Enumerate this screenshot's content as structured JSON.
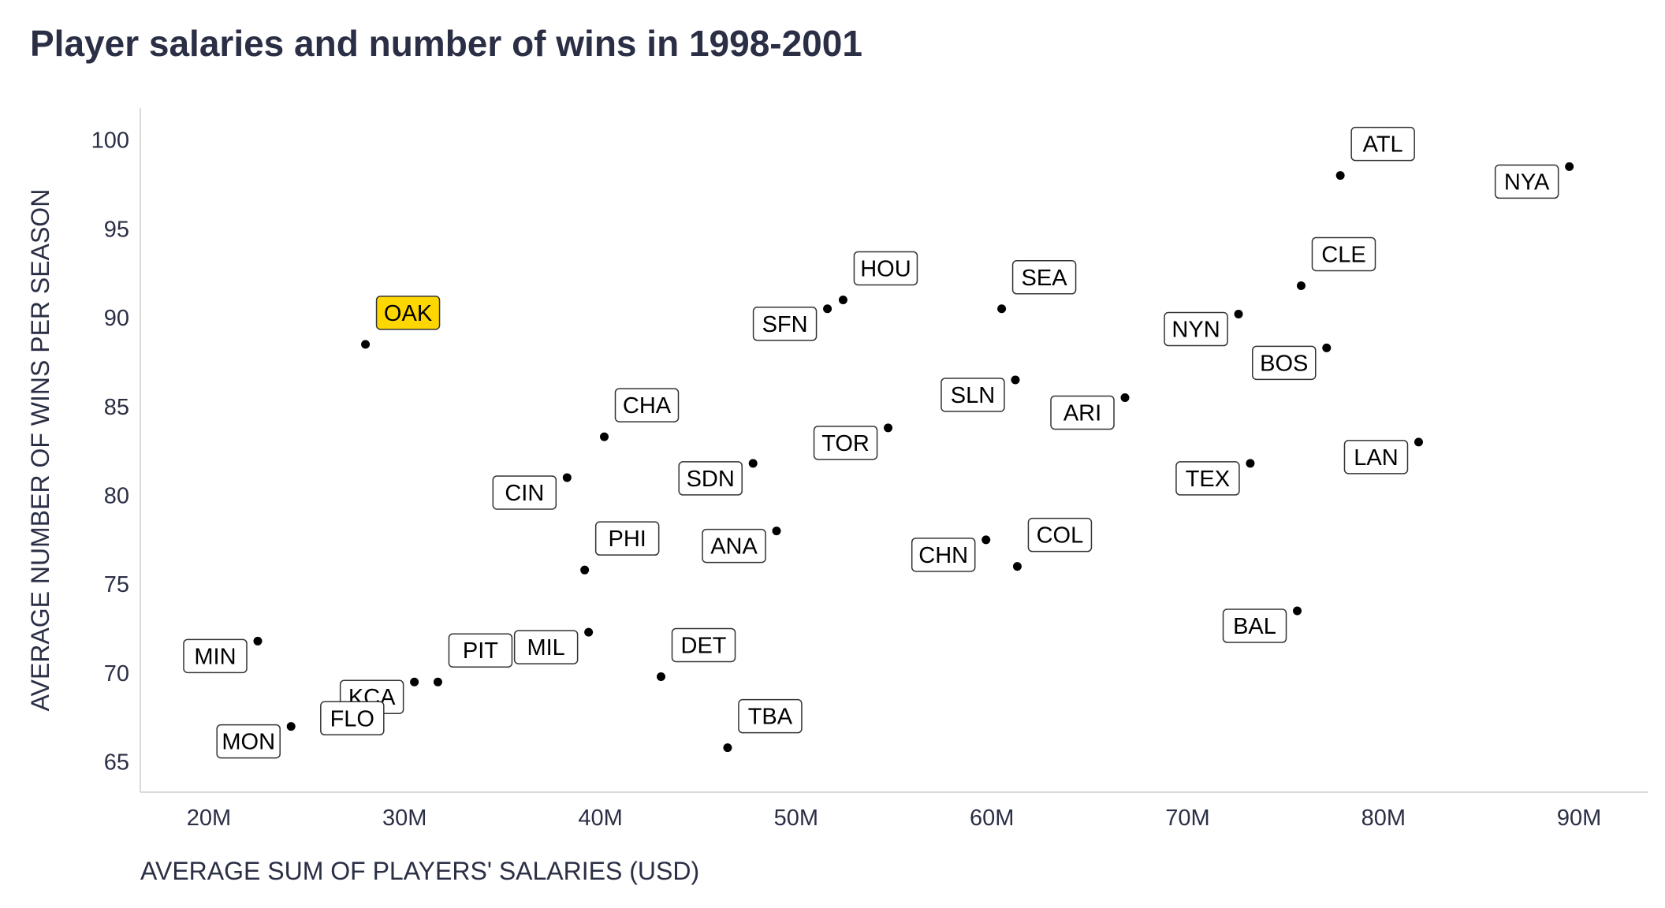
{
  "chart_data": {
    "type": "scatter",
    "title": "Player salaries and number of wins in 1998-2001",
    "xlabel": "AVERAGE SUM OF PLAYERS' SALARIES (USD)",
    "ylabel": "AVERAGE NUMBER OF WINS PER SEASON",
    "xlim": [
      16.5,
      93.5
    ],
    "ylim": [
      63.3,
      101.8
    ],
    "x_unit": "millions USD",
    "x_ticks": [
      {
        "value": 20,
        "label": "20M"
      },
      {
        "value": 30,
        "label": "30M"
      },
      {
        "value": 40,
        "label": "40M"
      },
      {
        "value": 50,
        "label": "50M"
      },
      {
        "value": 60,
        "label": "60M"
      },
      {
        "value": 70,
        "label": "70M"
      },
      {
        "value": 80,
        "label": "80M"
      },
      {
        "value": 90,
        "label": "90M"
      }
    ],
    "y_ticks": [
      {
        "value": 65,
        "label": "65"
      },
      {
        "value": 70,
        "label": "70"
      },
      {
        "value": 75,
        "label": "75"
      },
      {
        "value": 80,
        "label": "80"
      },
      {
        "value": 85,
        "label": "85"
      },
      {
        "value": 90,
        "label": "90"
      },
      {
        "value": 95,
        "label": "95"
      },
      {
        "value": 100,
        "label": "100"
      }
    ],
    "grid": false,
    "highlight_color": "#ffd700",
    "point_color": "#000000",
    "label_placement": {
      "right": "up-right",
      "left": "down-left"
    },
    "points": [
      {
        "team": "ATL",
        "x": 77.8,
        "y": 98.0,
        "side": "right"
      },
      {
        "team": "NYA",
        "x": 89.5,
        "y": 98.5,
        "side": "left"
      },
      {
        "team": "CLE",
        "x": 75.8,
        "y": 91.8,
        "side": "right"
      },
      {
        "team": "HOU",
        "x": 52.4,
        "y": 91.0,
        "side": "right"
      },
      {
        "team": "SFN",
        "x": 51.6,
        "y": 90.5,
        "side": "left"
      },
      {
        "team": "SEA",
        "x": 60.5,
        "y": 90.5,
        "side": "right"
      },
      {
        "team": "NYN",
        "x": 72.6,
        "y": 90.2,
        "side": "left"
      },
      {
        "team": "OAK",
        "x": 28.0,
        "y": 88.5,
        "side": "right",
        "highlight": true
      },
      {
        "team": "BOS",
        "x": 77.1,
        "y": 88.3,
        "side": "left"
      },
      {
        "team": "SLN",
        "x": 61.2,
        "y": 86.5,
        "side": "left"
      },
      {
        "team": "ARI",
        "x": 66.8,
        "y": 85.5,
        "side": "left"
      },
      {
        "team": "TOR",
        "x": 54.7,
        "y": 83.8,
        "side": "left"
      },
      {
        "team": "CHA",
        "x": 40.2,
        "y": 83.3,
        "side": "right"
      },
      {
        "team": "LAN",
        "x": 81.8,
        "y": 83.0,
        "side": "left"
      },
      {
        "team": "SDN",
        "x": 47.8,
        "y": 81.8,
        "side": "left"
      },
      {
        "team": "TEX",
        "x": 73.2,
        "y": 81.8,
        "side": "left"
      },
      {
        "team": "CIN",
        "x": 38.3,
        "y": 81.0,
        "side": "left"
      },
      {
        "team": "ANA",
        "x": 49.0,
        "y": 78.0,
        "side": "left"
      },
      {
        "team": "CHN",
        "x": 59.7,
        "y": 77.5,
        "side": "left"
      },
      {
        "team": "COL",
        "x": 61.3,
        "y": 76.0,
        "side": "right"
      },
      {
        "team": "PHI",
        "x": 39.2,
        "y": 75.8,
        "side": "right"
      },
      {
        "team": "BAL",
        "x": 75.6,
        "y": 73.5,
        "side": "left"
      },
      {
        "team": "MIL",
        "x": 39.4,
        "y": 72.3,
        "side": "left"
      },
      {
        "team": "MIN",
        "x": 22.5,
        "y": 71.8,
        "side": "left"
      },
      {
        "team": "DET",
        "x": 43.1,
        "y": 69.8,
        "side": "right"
      },
      {
        "team": "KCA",
        "x": 30.5,
        "y": 69.5,
        "side": "left"
      },
      {
        "team": "PIT",
        "x": 31.7,
        "y": 69.5,
        "side": "right"
      },
      {
        "team": "FLO",
        "x": 29.5,
        "y": 68.3,
        "side": "left"
      },
      {
        "team": "MON",
        "x": 24.2,
        "y": 67.0,
        "side": "left"
      },
      {
        "team": "TBA",
        "x": 46.5,
        "y": 65.8,
        "side": "right"
      }
    ]
  }
}
